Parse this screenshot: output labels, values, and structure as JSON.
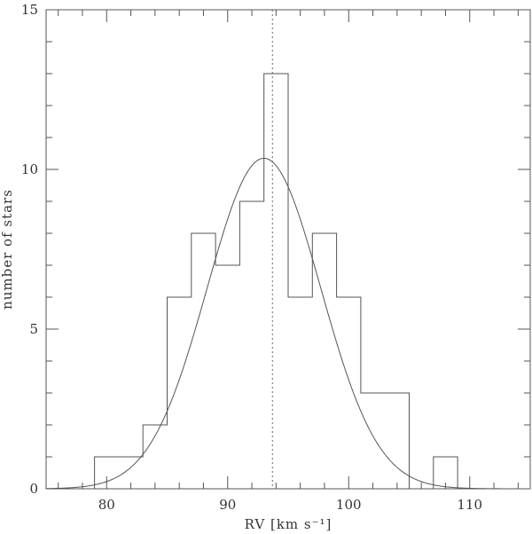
{
  "chart_data": {
    "type": "bar",
    "histogram": true,
    "xlabel": "RV  [km s⁻¹]",
    "ylabel": "number of stars",
    "xlim": [
      75,
      115
    ],
    "ylim": [
      0,
      15
    ],
    "x_ticks": [
      80,
      90,
      100,
      110
    ],
    "y_ticks": [
      0,
      5,
      10,
      15
    ],
    "bins": [
      {
        "x0": 79,
        "x1": 81,
        "count": 1
      },
      {
        "x0": 81,
        "x1": 83,
        "count": 1
      },
      {
        "x0": 83,
        "x1": 85,
        "count": 2
      },
      {
        "x0": 85,
        "x1": 87,
        "count": 6
      },
      {
        "x0": 87,
        "x1": 89,
        "count": 8
      },
      {
        "x0": 89,
        "x1": 91,
        "count": 7
      },
      {
        "x0": 91,
        "x1": 93,
        "count": 9
      },
      {
        "x0": 93,
        "x1": 95,
        "count": 13
      },
      {
        "x0": 95,
        "x1": 97,
        "count": 6
      },
      {
        "x0": 97,
        "x1": 99,
        "count": 8
      },
      {
        "x0": 99,
        "x1": 101,
        "count": 6
      },
      {
        "x0": 101,
        "x1": 103,
        "count": 3
      },
      {
        "x0": 103,
        "x1": 105,
        "count": 3
      },
      {
        "x0": 105,
        "x1": 107,
        "count": 0
      },
      {
        "x0": 107,
        "x1": 109,
        "count": 1
      }
    ],
    "gaussian_fit": {
      "mean": 93.0,
      "sigma": 4.7,
      "amplitude": 10.35
    },
    "mean_line_x": 93.7,
    "grid": false,
    "colors": {
      "lines": "#555555",
      "text": "#333333"
    }
  }
}
